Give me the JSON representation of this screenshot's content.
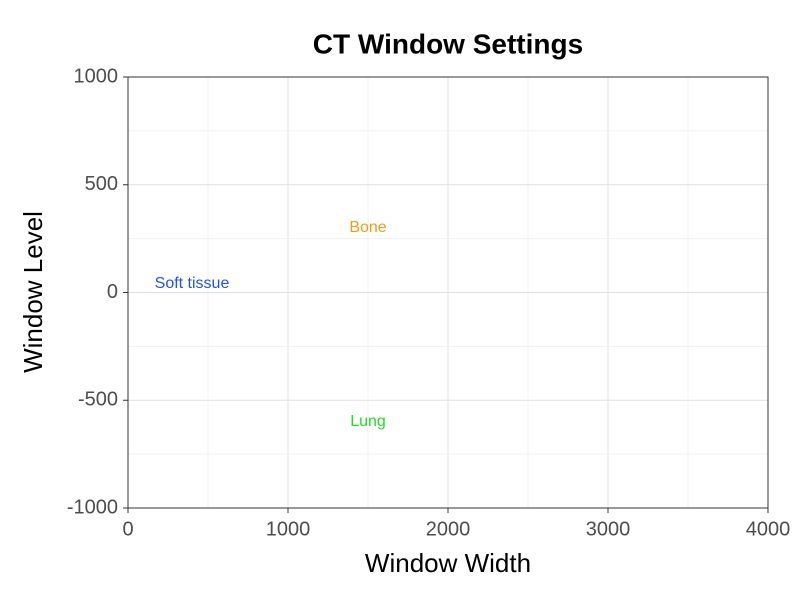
{
  "chart_data": {
    "type": "scatter",
    "title": "CT Window Settings",
    "x_label": "Window Width",
    "y_label": "Window Level",
    "labels": [
      "Soft tissue",
      "Bone",
      "Lung"
    ],
    "x": [
      400,
      1500,
      1500
    ],
    "values": [
      40,
      300,
      -600
    ],
    "colors": [
      "#2255dd",
      "#f39c12",
      "#22dd22"
    ],
    "xlim": [
      0,
      4000
    ],
    "xticks": [
      0,
      1000,
      2000,
      3000,
      4000
    ],
    "ylim": [
      -1000,
      1000
    ],
    "yticks": [
      -1000,
      -500,
      0,
      500,
      1000
    ],
    "grid": true
  }
}
